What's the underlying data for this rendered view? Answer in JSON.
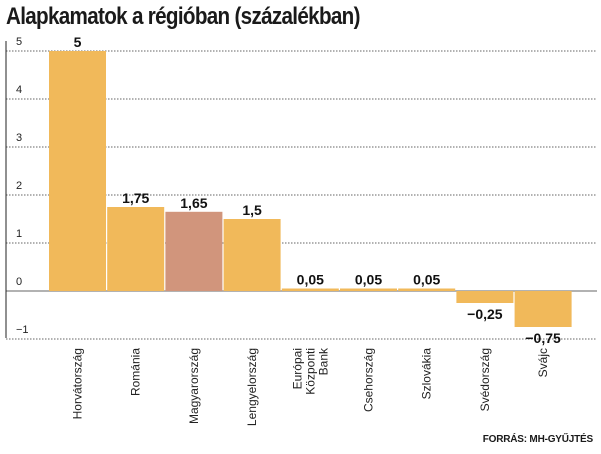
{
  "title": "Alapkamatok a régióban (százalékban)",
  "source": "FORRÁS: MH-GYŰJTÉS",
  "colors": {
    "bar": "#f1b95a",
    "highlight": "#d1957c",
    "axis": "#222222",
    "grid": "#333333"
  },
  "chart_data": {
    "type": "bar",
    "title": "Alapkamatok a régióban (százalékban)",
    "xlabel": "",
    "ylabel": "",
    "ylim": [
      -1,
      5
    ],
    "yticks": [
      "5",
      "4",
      "3",
      "2",
      "1",
      "0",
      "−1"
    ],
    "grid": true,
    "categories": [
      [
        "Horvátország"
      ],
      [
        "Románia"
      ],
      [
        "Magyarország"
      ],
      [
        "Lengyelország"
      ],
      [
        "Európai",
        "Központi",
        "Bank"
      ],
      [
        "Csehország"
      ],
      [
        "Szlovákia"
      ],
      [
        "Svédország"
      ],
      [
        "Svájc"
      ]
    ],
    "values": [
      5,
      1.75,
      1.65,
      1.5,
      0.05,
      0.05,
      0.05,
      -0.25,
      -0.75
    ],
    "value_labels": [
      "5",
      "1,75",
      "1,65",
      "1,5",
      "0,05",
      "0,05",
      "0,05",
      "−0,25",
      "−0,75"
    ],
    "highlight_index": 2
  }
}
